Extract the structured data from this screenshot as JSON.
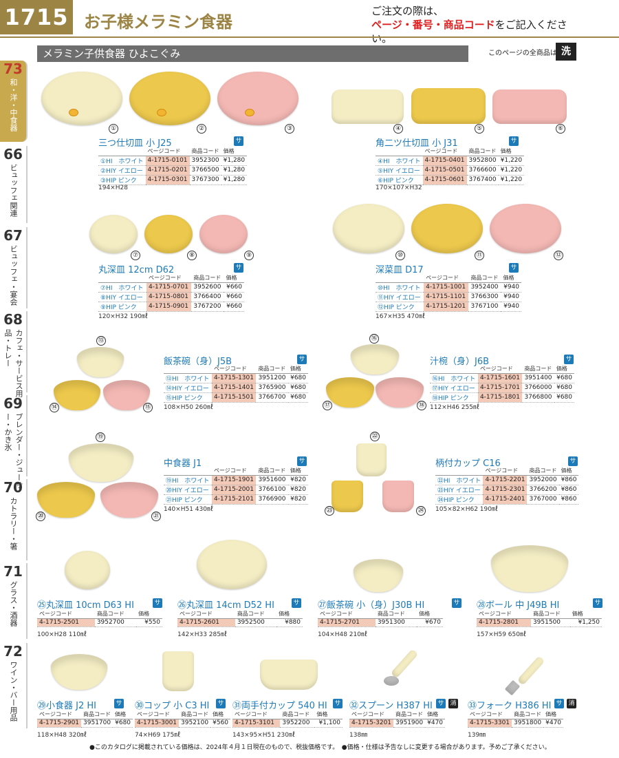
{
  "header": {
    "page_number": "1715",
    "title": "お子様メラミン食器",
    "order_line1": "ご注文の際は、",
    "order_line2_red": "ページ・番号・商品コード",
    "order_line2_rest": "をご記入ください。"
  },
  "subhead": "メラミン子供食器 ひよこぐみ",
  "wash_note": "このページの全商品は",
  "wash_icon": "洗",
  "tabs": [
    {
      "num": "73",
      "label": "和・洋・中食器"
    },
    {
      "num": "66",
      "label": "ビュッフェ関連"
    },
    {
      "num": "67",
      "label": "ビュッフェ・宴会"
    },
    {
      "num": "68",
      "label": "カフェ・サービス用品・トレー"
    },
    {
      "num": "69",
      "label": "ブレンダー・ジューサー・かき氷"
    },
    {
      "num": "70",
      "label": "カトラリー・箸"
    },
    {
      "num": "71",
      "label": "グラス・酒器"
    },
    {
      "num": "72",
      "label": "ワイン・バー用品"
    }
  ],
  "col_headers": {
    "page": "ページコード",
    "code": "商品コード",
    "price": "価格"
  },
  "sai": "サ",
  "kesu": "消",
  "products": [
    {
      "title": "三つ仕切皿 小 J25",
      "size": "194×H28",
      "rows": [
        {
          "name": "①HI　ホワイト",
          "page": "4-1715-0101",
          "code": "3952300",
          "price": "¥1,280"
        },
        {
          "name": "②HIY イエロー",
          "page": "4-1715-0201",
          "code": "3766500",
          "price": "¥1,280"
        },
        {
          "name": "③HIP ピンク",
          "page": "4-1715-0301",
          "code": "3767300",
          "price": "¥1,280"
        }
      ]
    },
    {
      "title": "角二ツ仕切皿 小 J31",
      "size": "170×107×H32",
      "rows": [
        {
          "name": "④HI　ホワイト",
          "page": "4-1715-0401",
          "code": "3952800",
          "price": "¥1,220"
        },
        {
          "name": "⑤HIY イエロー",
          "page": "4-1715-0501",
          "code": "3766600",
          "price": "¥1,220"
        },
        {
          "name": "⑥HIP ピンク",
          "page": "4-1715-0601",
          "code": "3767400",
          "price": "¥1,220"
        }
      ]
    },
    {
      "title": "丸深皿 12cm D62",
      "size": "120×H32 190㎖",
      "rows": [
        {
          "name": "⑦HI　ホワイト",
          "page": "4-1715-0701",
          "code": "3952600",
          "price": "¥660"
        },
        {
          "name": "⑧HIY イエロー",
          "page": "4-1715-0801",
          "code": "3766400",
          "price": "¥660"
        },
        {
          "name": "⑨HIP ピンク",
          "page": "4-1715-0901",
          "code": "3767200",
          "price": "¥660"
        }
      ]
    },
    {
      "title": "深菜皿 D17",
      "size": "167×H35 470㎖",
      "rows": [
        {
          "name": "⑩HI　ホワイト",
          "page": "4-1715-1001",
          "code": "3952400",
          "price": "¥940"
        },
        {
          "name": "⑪HIY イエロー",
          "page": "4-1715-1101",
          "code": "3766300",
          "price": "¥940"
        },
        {
          "name": "⑫HIP ピンク",
          "page": "4-1715-1201",
          "code": "3767100",
          "price": "¥940"
        }
      ]
    },
    {
      "title": "飯茶碗（身）J5B",
      "size": "108×H50 260㎖",
      "rows": [
        {
          "name": "⑬HI　ホワイト",
          "page": "4-1715-1301",
          "code": "3951200",
          "price": "¥680"
        },
        {
          "name": "⑭HIY イエロー",
          "page": "4-1715-1401",
          "code": "3765900",
          "price": "¥680"
        },
        {
          "name": "⑮HIP ピンク",
          "page": "4-1715-1501",
          "code": "3766700",
          "price": "¥680"
        }
      ]
    },
    {
      "title": "汁椀（身）J6B",
      "size": "112×H46 255㎖",
      "rows": [
        {
          "name": "⑯HI　ホワイト",
          "page": "4-1715-1601",
          "code": "3951400",
          "price": "¥680"
        },
        {
          "name": "⑰HIY イエロー",
          "page": "4-1715-1701",
          "code": "3766000",
          "price": "¥680"
        },
        {
          "name": "⑱HIP ピンク",
          "page": "4-1715-1801",
          "code": "3766800",
          "price": "¥680"
        }
      ]
    },
    {
      "title": "中食器 J1",
      "size": "140×H51 430㎖",
      "rows": [
        {
          "name": "⑲HI　ホワイト",
          "page": "4-1715-1901",
          "code": "3951600",
          "price": "¥820"
        },
        {
          "name": "⑳HIY イエロー",
          "page": "4-1715-2001",
          "code": "3766100",
          "price": "¥820"
        },
        {
          "name": "㉑HIP ピンク",
          "page": "4-1715-2101",
          "code": "3766900",
          "price": "¥820"
        }
      ]
    },
    {
      "title": "柄付カップ C16",
      "size": "105×82×H62 190㎖",
      "rows": [
        {
          "name": "㉒HI　ホワイト",
          "page": "4-1715-2201",
          "code": "3952000",
          "price": "¥860"
        },
        {
          "name": "㉓HIY イエロー",
          "page": "4-1715-2301",
          "code": "3766200",
          "price": "¥860"
        },
        {
          "name": "㉔HIP ピンク",
          "page": "4-1715-2401",
          "code": "3767000",
          "price": "¥860"
        }
      ]
    },
    {
      "title": "㉕丸深皿 10cm D63 HI",
      "size": "100×H28 110㎖",
      "rows": [
        {
          "page": "4-1715-2501",
          "code": "3952700",
          "price": "¥550"
        }
      ]
    },
    {
      "title": "㉖丸深皿 14cm D52 HI",
      "size": "142×H33 285㎖",
      "rows": [
        {
          "page": "4-1715-2601",
          "code": "3952500",
          "price": "¥880"
        }
      ]
    },
    {
      "title": "㉗飯茶碗 小（身）J30B HI",
      "size": "104×H48 210㎖",
      "rows": [
        {
          "page": "4-1715-2701",
          "code": "3951300",
          "price": "¥670"
        }
      ]
    },
    {
      "title": "㉘ボール 中 J49B HI",
      "size": "157×H59 650㎖",
      "rows": [
        {
          "page": "4-1715-2801",
          "code": "3951500",
          "price": "¥1,250"
        }
      ]
    },
    {
      "title": "㉙小食器 J2 HI",
      "size": "118×H48 320㎖",
      "rows": [
        {
          "page": "4-1715-2901",
          "code": "3951700",
          "price": "¥680"
        }
      ]
    },
    {
      "title": "㉚コップ 小 C3 HI",
      "size": "74×H69 175㎖",
      "rows": [
        {
          "page": "4-1715-3001",
          "code": "3952100",
          "price": "¥560"
        }
      ]
    },
    {
      "title": "㉛両手付カップ 540 HI",
      "size": "143×95×H51 230㎖",
      "rows": [
        {
          "page": "4-1715-3101",
          "code": "3952200",
          "price": "¥1,100"
        }
      ]
    },
    {
      "title": "㉜スプーン H387 HI",
      "size": "138㎜",
      "rows": [
        {
          "page": "4-1715-3201",
          "code": "3951900",
          "price": "¥470"
        }
      ]
    },
    {
      "title": "㉝フォーク H386 HI",
      "size": "139㎜",
      "rows": [
        {
          "page": "4-1715-3301",
          "code": "3951800",
          "price": "¥470"
        }
      ]
    }
  ],
  "callouts": [
    "①",
    "②",
    "③",
    "④",
    "⑤",
    "⑥",
    "⑦",
    "⑧",
    "⑨",
    "⑩",
    "⑪",
    "⑫",
    "⑬",
    "⑭",
    "⑮",
    "⑯",
    "⑰",
    "⑱",
    "⑲",
    "⑳",
    "㉑",
    "㉒",
    "㉓",
    "㉔"
  ],
  "bottom_note": "●このカタログに掲載されている価格は、2024年４月１日現在のもので、税抜価格です。　●価格・仕様は予告なしに変更する場合があります。予めご了承ください。"
}
